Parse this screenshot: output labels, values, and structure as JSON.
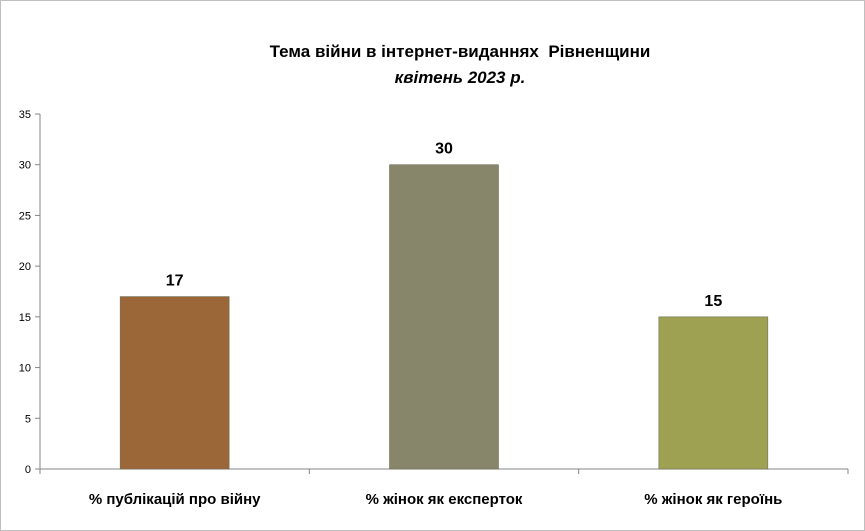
{
  "colors": {
    "bars": [
      "#9b6738",
      "#87866a",
      "#9ea052"
    ],
    "axis": "#868686"
  },
  "chart_data": {
    "type": "bar",
    "title": "Тема війни в інтернет-виданнях  Рівненщини",
    "subtitle": "квітень 2023 р.",
    "xlabel": "",
    "ylabel": "",
    "categories": [
      "% публікацій про війну",
      "% жінок як експерток",
      "% жінок як героїнь"
    ],
    "values": [
      17,
      30,
      15
    ],
    "data_labels": [
      "17",
      "30",
      "15"
    ],
    "ylim": [
      0,
      35
    ],
    "yticks": [
      "0",
      "5",
      "10",
      "15",
      "20",
      "25",
      "30",
      "35"
    ],
    "grid": false,
    "legend": "none"
  }
}
